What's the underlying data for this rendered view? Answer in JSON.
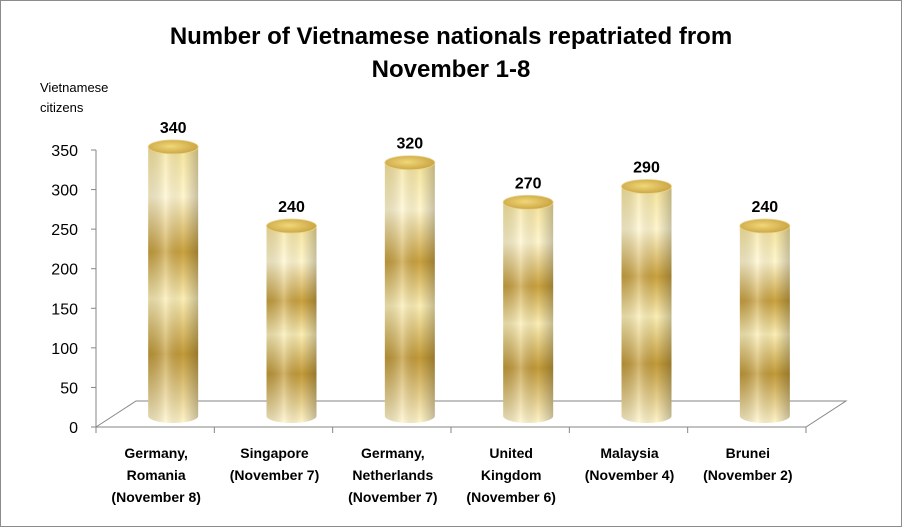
{
  "chart_data": {
    "type": "bar",
    "style": "3d-cylinder",
    "title": "Number of Vietnamese nationals repatriated from\nNovember 1-8",
    "ylabel": "Vietnamese\ncitizens",
    "xlabel": "",
    "ylim": [
      0,
      350
    ],
    "yticks": [
      0,
      50,
      100,
      150,
      200,
      250,
      300,
      350
    ],
    "categories": [
      [
        "Germany,",
        "Romania",
        "(November 8)"
      ],
      [
        "Singapore",
        "(November 7)"
      ],
      [
        "Germany,",
        "Netherlands",
        "(November 7)"
      ],
      [
        "United",
        "Kingdom",
        "(November 6)"
      ],
      [
        "Malaysia",
        "(November 4)"
      ],
      [
        "Brunei",
        "(November 2)"
      ]
    ],
    "values": [
      340,
      240,
      320,
      270,
      290,
      240
    ],
    "data_labels": [
      "340",
      "240",
      "320",
      "270",
      "290",
      "240"
    ],
    "grid": false,
    "legend": "none",
    "colors": {
      "bar_light": "#fdf3c4",
      "bar_mid": "#e6c766",
      "bar_dark": "#b8922e",
      "bar_top": "#d9b550",
      "axis": "#868686"
    }
  }
}
